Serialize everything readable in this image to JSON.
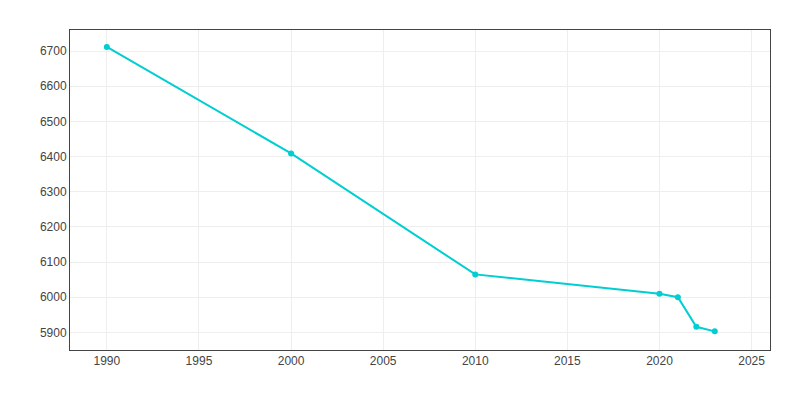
{
  "chart_data": {
    "type": "line",
    "x": [
      1990,
      2000,
      2010,
      2020,
      2021,
      2022,
      2023
    ],
    "values": [
      6712,
      6409,
      6065,
      6010,
      6000,
      5916,
      5903
    ],
    "color": "#00CED1",
    "marker": "circle",
    "xlim": [
      1988,
      2026
    ],
    "ylim": [
      5850,
      6760
    ],
    "xticks": [
      1990,
      1995,
      2000,
      2005,
      2010,
      2015,
      2020,
      2025
    ],
    "yticks": [
      5900,
      6000,
      6100,
      6200,
      6300,
      6400,
      6500,
      6600,
      6700
    ],
    "grid": true
  }
}
